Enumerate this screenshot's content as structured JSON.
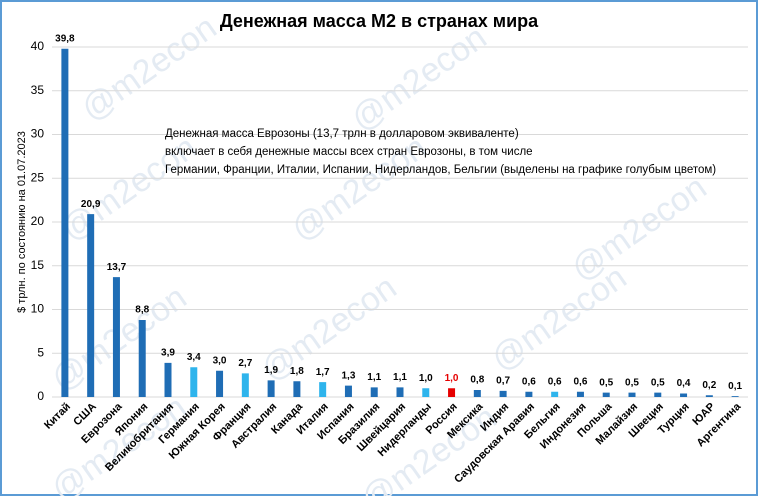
{
  "chart_data": {
    "type": "bar",
    "title": "Денежная масса М2 в странах мира",
    "y_label": "$ трлн. по состоянию на 01.07.2023",
    "annotation": [
      "Денежная масса Еврозоны (13,7 трлн в долларовом эквиваленте)",
      "включает в себя денежные массы всех стран Еврозоны, в том числе",
      "Германии, Франции, Италии, Испании, Нидерландов, Бельгии (выделены на графике голубым цветом)"
    ],
    "watermark": "@m2econ",
    "categories": [
      "Китай",
      "США",
      "Еврозона",
      "Япония",
      "Великобритания",
      "Германия",
      "Южная Корея",
      "Франция",
      "Австралия",
      "Канада",
      "Италия",
      "Испания",
      "Бразилия",
      "Швейцария",
      "Нидерланды",
      "Россия",
      "Мексика",
      "Индия",
      "Саудовская Аравия",
      "Бельгия",
      "Индонезия",
      "Польша",
      "Малайзия",
      "Швеция",
      "Турция",
      "ЮАР",
      "Аргентина"
    ],
    "values": [
      39.8,
      20.9,
      13.7,
      8.8,
      3.9,
      3.4,
      3.0,
      2.7,
      1.9,
      1.8,
      1.7,
      1.3,
      1.1,
      1.1,
      1.0,
      1.0,
      0.8,
      0.7,
      0.6,
      0.6,
      0.6,
      0.5,
      0.5,
      0.5,
      0.4,
      0.2,
      0.1
    ],
    "value_labels": [
      "39,8",
      "20,9",
      "13,7",
      "8,8",
      "3,9",
      "3,4",
      "3,0",
      "2,7",
      "1,9",
      "1,8",
      "1,7",
      "1,3",
      "1,1",
      "1,1",
      "1,0",
      "1,0",
      "0,8",
      "0,7",
      "0,6",
      "0,6",
      "0,6",
      "0,5",
      "0,5",
      "0,5",
      "0,4",
      "0,2",
      "0,1"
    ],
    "colors": [
      "#1f6db5",
      "#1f6db5",
      "#1f6db5",
      "#1f6db5",
      "#1f6db5",
      "#2eb4ec",
      "#1f6db5",
      "#2eb4ec",
      "#1f6db5",
      "#1f6db5",
      "#2eb4ec",
      "#1f6db5",
      "#1f6db5",
      "#1f6db5",
      "#2eb4ec",
      "#e60000",
      "#1f6db5",
      "#1f6db5",
      "#1f6db5",
      "#2eb4ec",
      "#1f6db5",
      "#1f6db5",
      "#1f6db5",
      "#1f6db5",
      "#1f6db5",
      "#1f6db5",
      "#1f6db5"
    ],
    "value_label_colors": [
      "#000000",
      "#000000",
      "#000000",
      "#000000",
      "#000000",
      "#000000",
      "#000000",
      "#000000",
      "#000000",
      "#000000",
      "#000000",
      "#000000",
      "#000000",
      "#000000",
      "#000000",
      "#e60000",
      "#000000",
      "#000000",
      "#000000",
      "#000000",
      "#000000",
      "#000000",
      "#000000",
      "#000000",
      "#000000",
      "#000000",
      "#000000"
    ],
    "ylim": [
      0,
      40
    ],
    "yticks": [
      0,
      5,
      10,
      15,
      20,
      25,
      30,
      35,
      40
    ],
    "grid": true
  }
}
